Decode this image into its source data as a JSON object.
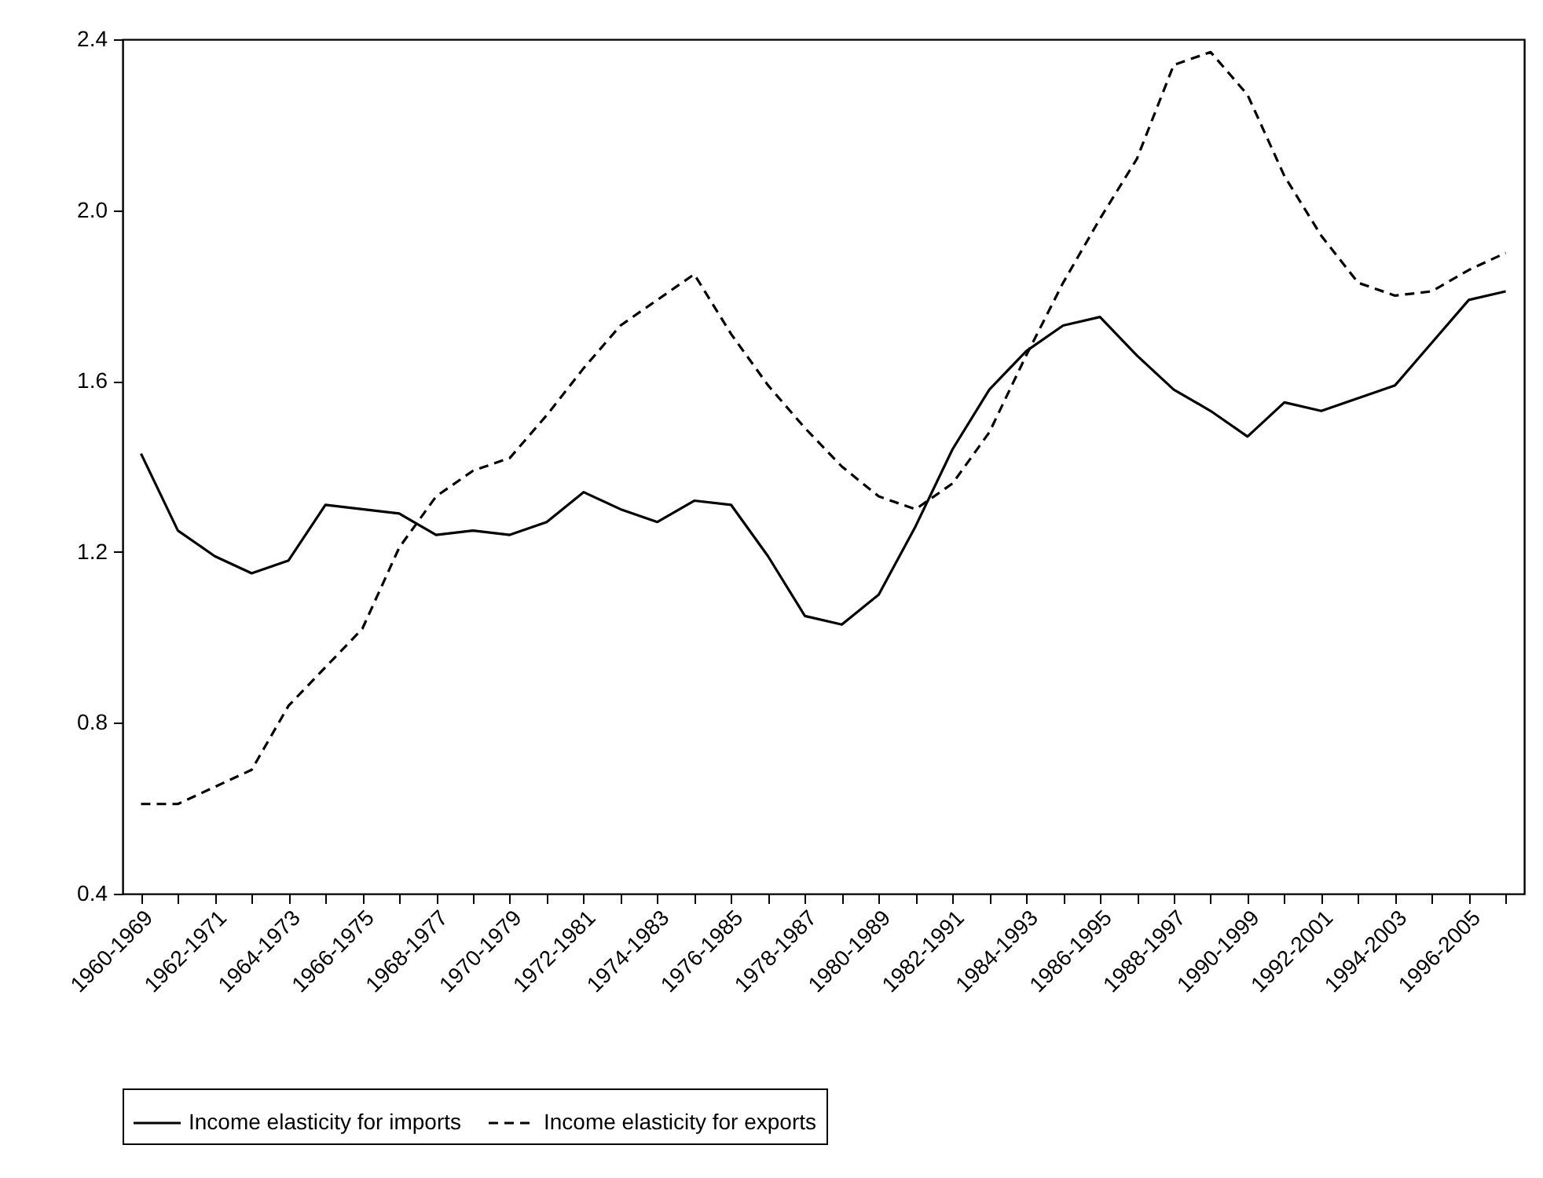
{
  "chart_data": {
    "type": "line",
    "categories": [
      "1960-1969",
      null,
      "1962-1971",
      null,
      "1964-1973",
      null,
      "1966-1975",
      null,
      "1968-1977",
      null,
      "1970-1979",
      null,
      "1972-1981",
      null,
      "1974-1983",
      null,
      "1976-1985",
      null,
      "1978-1987",
      null,
      "1980-1989",
      null,
      "1982-1991",
      null,
      "1984-1993",
      null,
      "1986-1995",
      null,
      "1988-1997",
      null,
      "1990-1999",
      null,
      "1992-2001",
      null,
      "1994-2003",
      null,
      "1996-2005",
      null
    ],
    "series": [
      {
        "name": "Income elasticity for imports",
        "color": "#000000",
        "line_style": "solid",
        "values": [
          1.43,
          1.25,
          1.19,
          1.15,
          1.18,
          1.31,
          1.3,
          1.29,
          1.24,
          1.25,
          1.24,
          1.27,
          1.34,
          1.3,
          1.27,
          1.32,
          1.31,
          1.19,
          1.05,
          1.03,
          1.1,
          1.26,
          1.44,
          1.58,
          1.67,
          1.73,
          1.75,
          1.66,
          1.58,
          1.53,
          1.47,
          1.55,
          1.53,
          1.56,
          1.59,
          1.69,
          1.79,
          1.81
        ]
      },
      {
        "name": "Income elasticity for exports",
        "color": "#000000",
        "line_style": "dashed",
        "values": [
          0.61,
          0.61,
          0.65,
          0.69,
          0.84,
          0.93,
          1.02,
          1.21,
          1.33,
          1.39,
          1.42,
          1.52,
          1.63,
          1.73,
          1.79,
          1.85,
          1.71,
          1.59,
          1.49,
          1.4,
          1.33,
          1.3,
          1.36,
          1.48,
          1.66,
          1.83,
          1.98,
          2.12,
          2.34,
          2.37,
          2.27,
          2.08,
          1.94,
          1.83,
          1.8,
          1.81,
          1.86,
          1.9
        ]
      }
    ],
    "ylim": [
      0.4,
      2.4
    ],
    "yticks": [
      {
        "value": 0.4,
        "label": "0.4"
      },
      {
        "value": 0.8,
        "label": "0.8"
      },
      {
        "value": 1.2,
        "label": "1.2"
      },
      {
        "value": 1.6,
        "label": "1.6"
      },
      {
        "value": 2.0,
        "label": "2.0"
      },
      {
        "value": 2.4,
        "label": "2.4"
      }
    ],
    "grid": false,
    "legend": "bottom"
  }
}
